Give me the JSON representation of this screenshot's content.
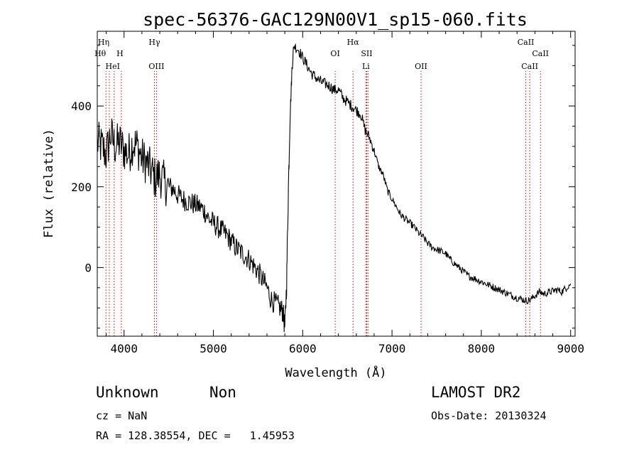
{
  "chart_data": {
    "type": "line",
    "title": "spec-56376-GAC129N00V1_sp15-060.fits",
    "xlabel": "Wavelength (Å)",
    "ylabel": "Flux (relative)",
    "xlim": [
      3700,
      9050
    ],
    "ylim": [
      -170,
      585
    ],
    "xticks": [
      4000,
      5000,
      6000,
      7000,
      8000,
      9000
    ],
    "yticks": [
      0,
      200,
      400
    ],
    "grid": false,
    "legend": "none",
    "line_color": "#000000",
    "marker_color": "#cc0000",
    "series": [
      {
        "x": [
          3700,
          3750,
          3800,
          3850,
          3900,
          3950,
          4000,
          4050,
          4100,
          4150,
          4200,
          4250,
          4300,
          4350,
          4400,
          4450,
          4500,
          4550,
          4600,
          4650,
          4700,
          4750,
          4800,
          4850,
          4900,
          4950,
          5000,
          5050,
          5100,
          5150,
          5200,
          5250,
          5300,
          5350,
          5400,
          5450,
          5500,
          5550,
          5600,
          5650,
          5700,
          5750,
          5780,
          5800,
          5820,
          5840,
          5860,
          5880,
          5900,
          5950,
          6000,
          6050,
          6100,
          6150,
          6200,
          6250,
          6300,
          6350,
          6400,
          6450,
          6500,
          6550,
          6600,
          6650,
          6700,
          6750,
          6800,
          6850,
          6900,
          6950,
          7000,
          7050,
          7100,
          7150,
          7200,
          7250,
          7300,
          7350,
          7400,
          7450,
          7500,
          7550,
          7600,
          7650,
          7700,
          7750,
          7800,
          7850,
          7900,
          7950,
          8000,
          8050,
          8100,
          8150,
          8200,
          8250,
          8300,
          8350,
          8400,
          8450,
          8500,
          8550,
          8600,
          8650,
          8700,
          8750,
          8800,
          8850,
          8900,
          8950,
          9000
        ],
        "y": [
          310,
          300,
          280,
          330,
          300,
          310,
          290,
          280,
          310,
          300,
          270,
          260,
          240,
          220,
          230,
          210,
          200,
          195,
          180,
          170,
          165,
          160,
          155,
          150,
          140,
          120,
          110,
          100,
          90,
          80,
          65,
          50,
          40,
          30,
          20,
          5,
          -10,
          -30,
          -50,
          -80,
          -90,
          -100,
          -110,
          -150,
          -40,
          200,
          380,
          490,
          550,
          540,
          520,
          500,
          480,
          470,
          460,
          455,
          450,
          440,
          440,
          420,
          410,
          400,
          390,
          380,
          340,
          320,
          290,
          250,
          230,
          190,
          170,
          150,
          130,
          120,
          110,
          100,
          85,
          75,
          60,
          50,
          45,
          40,
          35,
          20,
          10,
          0,
          -10,
          -20,
          -25,
          -30,
          -35,
          -40,
          -45,
          -50,
          -55,
          -60,
          -65,
          -70,
          -75,
          -78,
          -82,
          -80,
          -70,
          -60,
          -65,
          -62,
          -58,
          -55,
          -60,
          -50,
          -40
        ]
      }
    ],
    "lines": [
      {
        "label": "Hη",
        "x": 3835,
        "row": 1,
        "dx": -8
      },
      {
        "label": "Hθ",
        "x": 3797,
        "row": 2,
        "dx": -8
      },
      {
        "label": "H",
        "x": 3970,
        "row": 2,
        "dx": -2
      },
      {
        "label": "HeI",
        "x": 3889,
        "row": 3,
        "dx": -2
      },
      {
        "label": "Hγ",
        "x": 4340,
        "row": 1,
        "dx": 0
      },
      {
        "label": "OIII",
        "x": 4363,
        "row": 3,
        "dx": 0
      },
      {
        "label": "Hα",
        "x": 6563,
        "row": 1,
        "dx": 0
      },
      {
        "label": "OI",
        "x": 6364,
        "row": 2,
        "dx": 0
      },
      {
        "label": "SII",
        "x": 6717,
        "row": 2,
        "dx": 0
      },
      {
        "label": "SII",
        "x": 6731,
        "row": 0,
        "dx": 0
      },
      {
        "label": "Li",
        "x": 6708,
        "row": 3,
        "dx": 0
      },
      {
        "label": "OII",
        "x": 7325,
        "row": 3,
        "dx": 0
      },
      {
        "label": "CaII",
        "x": 8498,
        "row": 1,
        "dx": 0
      },
      {
        "label": "CaII",
        "x": 8662,
        "row": 2,
        "dx": 0
      },
      {
        "label": "CaII",
        "x": 8542,
        "row": 3,
        "dx": 0
      }
    ]
  },
  "info": {
    "class": "Unknown",
    "subclass": "Non",
    "survey": "LAMOST DR2",
    "cz": "cz = NaN",
    "obs_date": "Obs-Date: 20130324",
    "coords": "RA = 128.38554, DEC =   1.45953"
  }
}
